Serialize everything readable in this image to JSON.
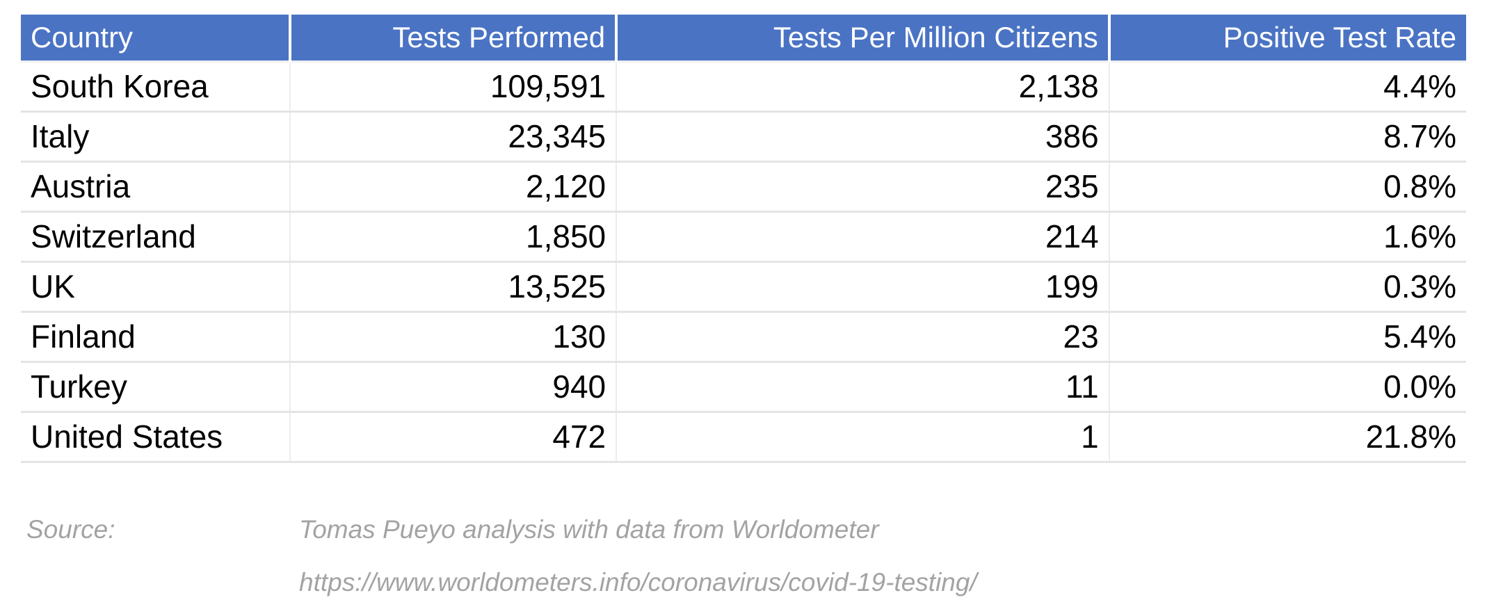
{
  "colors": {
    "page_bg": "#FFFFFF",
    "header_bg": "#4A73C4",
    "header_text": "#FFFFFF",
    "body_text": "#000000",
    "row_divider": "#E4E4E4",
    "source_text": "#A3A3A3"
  },
  "table": {
    "columns": [
      {
        "label": "Country",
        "align": "left"
      },
      {
        "label": "Tests Performed",
        "align": "right"
      },
      {
        "label": "Tests Per Million Citizens",
        "align": "right"
      },
      {
        "label": "Positive Test Rate",
        "align": "right"
      }
    ],
    "rows": [
      {
        "country": "South Korea",
        "tests_performed": "109,591",
        "tests_per_million": "2,138",
        "positive_rate": "4.4%"
      },
      {
        "country": "Italy",
        "tests_performed": "23,345",
        "tests_per_million": "386",
        "positive_rate": "8.7%"
      },
      {
        "country": "Austria",
        "tests_performed": "2,120",
        "tests_per_million": "235",
        "positive_rate": "0.8%"
      },
      {
        "country": "Switzerland",
        "tests_performed": "1,850",
        "tests_per_million": "214",
        "positive_rate": "1.6%"
      },
      {
        "country": "UK",
        "tests_performed": "13,525",
        "tests_per_million": "199",
        "positive_rate": "0.3%"
      },
      {
        "country": "Finland",
        "tests_performed": "130",
        "tests_per_million": "23",
        "positive_rate": "5.4%"
      },
      {
        "country": "Turkey",
        "tests_performed": "940",
        "tests_per_million": "11",
        "positive_rate": "0.0%"
      },
      {
        "country": "United States",
        "tests_performed": "472",
        "tests_per_million": "1",
        "positive_rate": "21.8%"
      }
    ]
  },
  "footer": {
    "source_label": "Source:",
    "line1": "Tomas Pueyo analysis with data from Worldometer",
    "line2": "https://www.worldometers.info/coronavirus/covid-19-testing/"
  },
  "chart_data": {
    "type": "table",
    "title": "",
    "columns": [
      "Country",
      "Tests Performed",
      "Tests Per Million Citizens",
      "Positive Test Rate"
    ],
    "rows": [
      [
        "South Korea",
        109591,
        2138,
        4.4
      ],
      [
        "Italy",
        23345,
        386,
        8.7
      ],
      [
        "Austria",
        2120,
        235,
        0.8
      ],
      [
        "Switzerland",
        1850,
        214,
        1.6
      ],
      [
        "UK",
        13525,
        199,
        0.3
      ],
      [
        "Finland",
        130,
        23,
        5.4
      ],
      [
        "Turkey",
        940,
        11,
        0.0
      ],
      [
        "United States",
        472,
        1,
        21.8
      ]
    ],
    "positive_rate_unit": "%",
    "source": "Tomas Pueyo analysis with data from Worldometer",
    "source_url": "https://www.worldometers.info/coronavirus/covid-19-testing/"
  }
}
